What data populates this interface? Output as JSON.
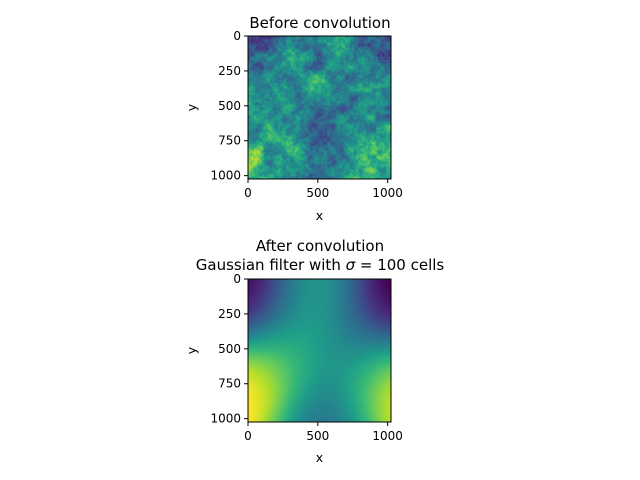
{
  "chart_data": [
    {
      "type": "heatmap",
      "title": "Before convolution",
      "xlabel": "x",
      "ylabel": "y",
      "xlim": [
        0,
        1024
      ],
      "ylim": [
        1024,
        0
      ],
      "xticks": [
        0,
        500,
        1000
      ],
      "yticks": [
        0,
        250,
        500,
        750,
        1000
      ],
      "colormap": "viridis",
      "content": "random field (unsmoothed), values mapped to viridis"
    },
    {
      "type": "heatmap",
      "title": "After convolution",
      "subtitle": "Gaussian filter with σ = 100 cells",
      "xlabel": "x",
      "ylabel": "y",
      "xlim": [
        0,
        1024
      ],
      "ylim": [
        1024,
        0
      ],
      "xticks": [
        0,
        500,
        1000
      ],
      "yticks": [
        0,
        250,
        500,
        750,
        1000
      ],
      "colormap": "viridis",
      "features": [
        {
          "x": 0,
          "y": 180,
          "level": 0.05
        },
        {
          "x": 1020,
          "y": 200,
          "level": 0.02
        },
        {
          "x": 40,
          "y": 730,
          "level": 0.95
        },
        {
          "x": 1010,
          "y": 750,
          "level": 0.95
        },
        {
          "x": 500,
          "y": 150,
          "level": 0.55
        },
        {
          "x": 330,
          "y": 500,
          "level": 0.6
        },
        {
          "x": 560,
          "y": 950,
          "level": 0.35
        },
        {
          "x": 770,
          "y": 520,
          "level": 0.4
        }
      ]
    }
  ]
}
